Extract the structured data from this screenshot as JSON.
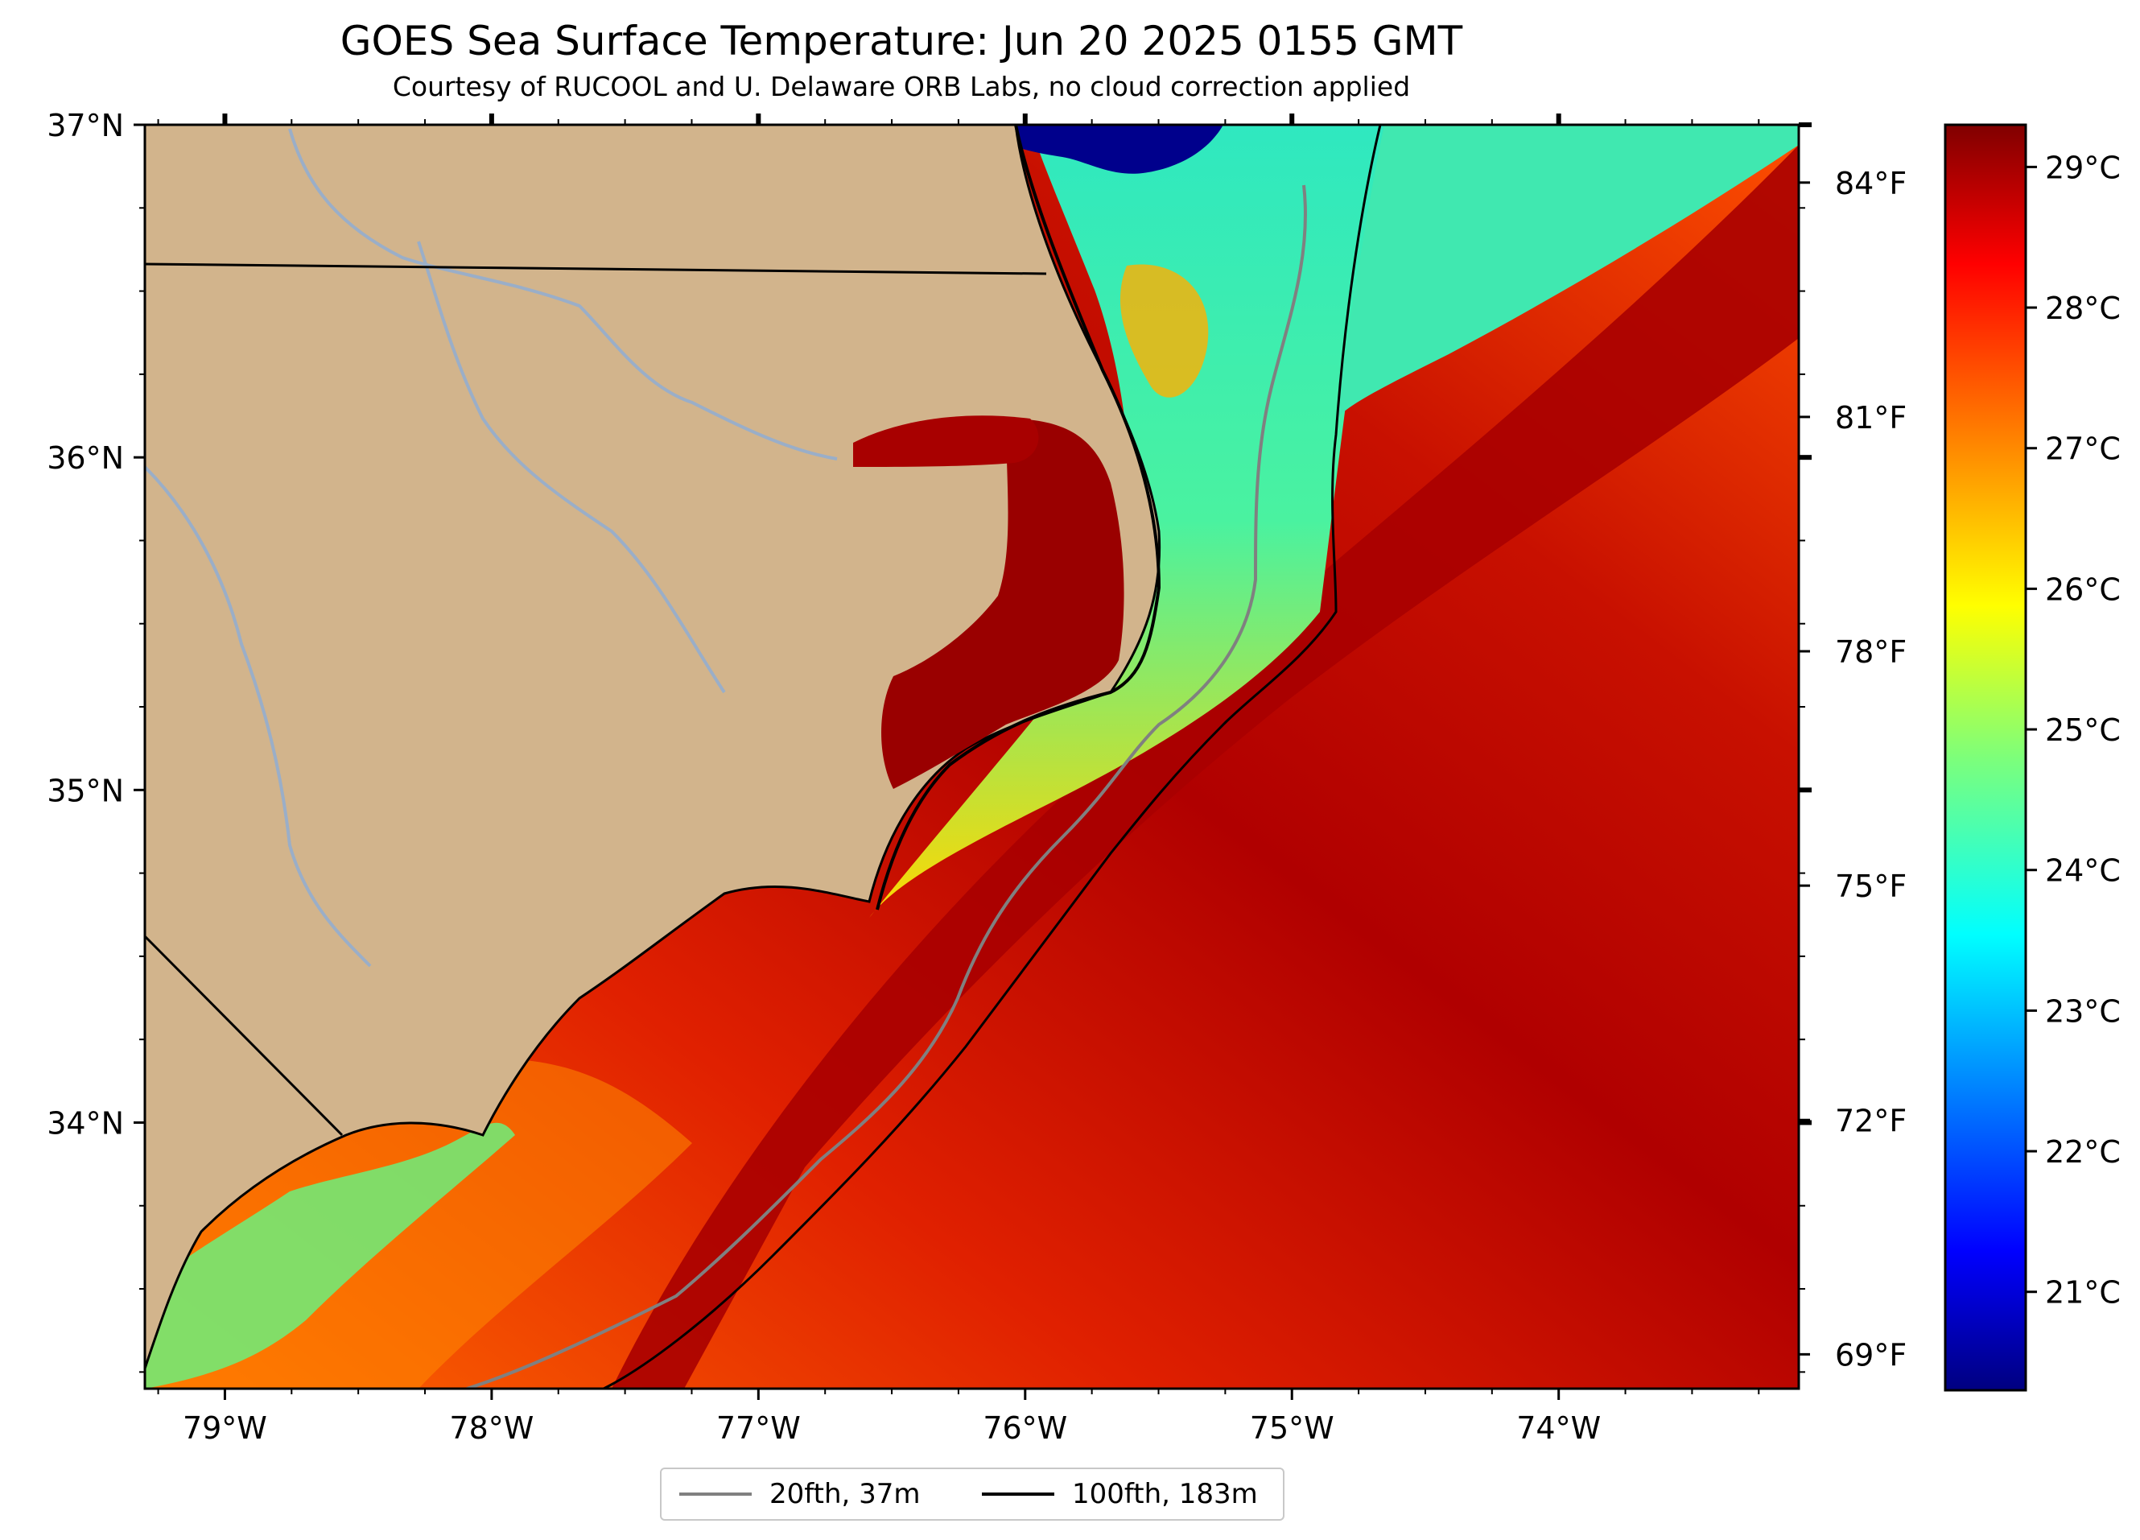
{
  "title": "GOES Sea Surface Temperature: Jun 20 2025 0155 GMT",
  "subtitle": "Courtesy of RUCOOL and U. Delaware ORB Labs, no cloud correction applied",
  "map": {
    "lon_range": [
      -79.3,
      -73.1
    ],
    "lat_range": [
      33.2,
      37.0
    ],
    "lon_ticks": [
      {
        "value": -79,
        "label": "79°W"
      },
      {
        "value": -78,
        "label": "78°W"
      },
      {
        "value": -77,
        "label": "77°W"
      },
      {
        "value": -76,
        "label": "76°W"
      },
      {
        "value": -75,
        "label": "75°W"
      },
      {
        "value": -74,
        "label": "74°W"
      }
    ],
    "lat_ticks": [
      {
        "value": 37,
        "label": "37°N"
      },
      {
        "value": 36,
        "label": "36°N"
      },
      {
        "value": 35,
        "label": "35°N"
      },
      {
        "value": 34,
        "label": "34°N"
      }
    ],
    "colors": {
      "land": "#d2b48c",
      "river": "#9aaec8",
      "ocean_warm": "#cc1000",
      "ocean_hot": "#8a0000"
    }
  },
  "colorbar": {
    "colormap": "jet",
    "range_c": [
      20.3,
      29.3
    ],
    "celsius_ticks": [
      {
        "value": 29,
        "label": "29°C"
      },
      {
        "value": 28,
        "label": "28°C"
      },
      {
        "value": 27,
        "label": "27°C"
      },
      {
        "value": 26,
        "label": "26°C"
      },
      {
        "value": 25,
        "label": "25°C"
      },
      {
        "value": 24,
        "label": "24°C"
      },
      {
        "value": 23,
        "label": "23°C"
      },
      {
        "value": 22,
        "label": "22°C"
      },
      {
        "value": 21,
        "label": "21°C"
      }
    ],
    "fahrenheit_ticks": [
      {
        "value": 84,
        "label": "84°F"
      },
      {
        "value": 81,
        "label": "81°F"
      },
      {
        "value": 78,
        "label": "78°F"
      },
      {
        "value": 75,
        "label": "75°F"
      },
      {
        "value": 72,
        "label": "72°F"
      },
      {
        "value": 69,
        "label": "69°F"
      }
    ]
  },
  "legend": {
    "items": [
      {
        "label": "20fth, 37m",
        "color": "#808080"
      },
      {
        "label": "100fth, 183m",
        "color": "#000000"
      }
    ]
  }
}
